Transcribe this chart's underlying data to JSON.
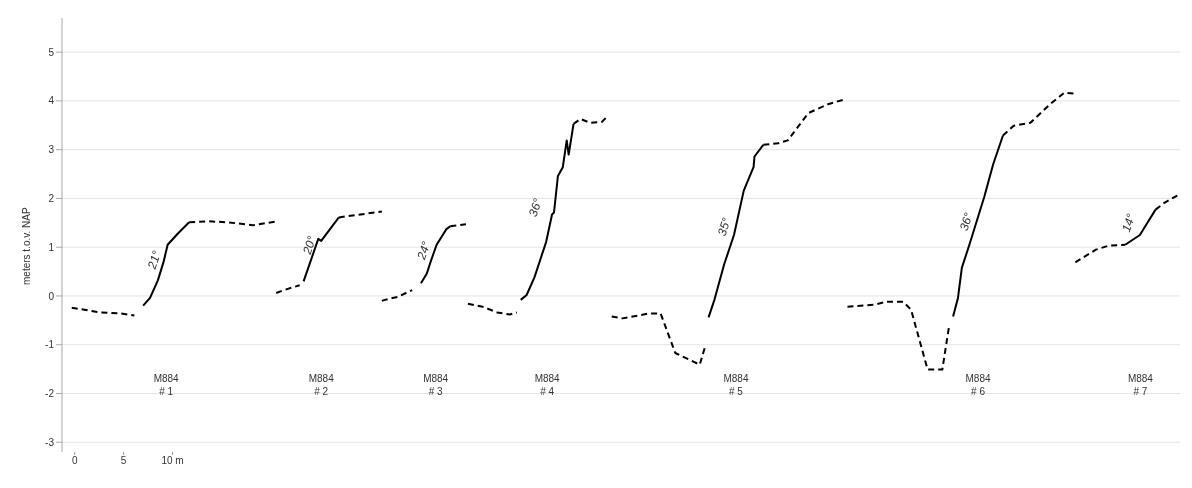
{
  "chart_data": {
    "type": "line",
    "ylabel": "meters t.o.v. NAP",
    "xlim": [
      -1.3,
      113
    ],
    "xticks": [
      0,
      5,
      {
        "value": 10,
        "label": "10 m"
      }
    ],
    "ylim": [
      -3.2,
      5.7
    ],
    "yticks": [
      -3,
      -2,
      -1,
      0,
      1,
      2,
      3,
      4,
      5
    ],
    "grid": "y",
    "marker": "none",
    "series": [
      {
        "color": "#000000",
        "line_style": "dashed",
        "x": [
          -0.3,
          2.7,
          4.7,
          6.1
        ],
        "values": [
          -0.24,
          -0.34,
          -0.36,
          -0.4
        ]
      },
      {
        "color": "#000000",
        "line_style": "solid",
        "x": [
          7.0,
          7.7,
          8.5,
          9.1,
          9.5,
          10.5,
          11.7
        ],
        "values": [
          -0.2,
          -0.04,
          0.32,
          0.71,
          1.05,
          1.27,
          1.51
        ]
      },
      {
        "color": "#000000",
        "line_style": "dashed",
        "x": [
          11.7,
          13.7,
          15.7,
          18.2,
          20.7
        ],
        "values": [
          1.51,
          1.53,
          1.51,
          1.45,
          1.53
        ]
      },
      {
        "color": "#000000",
        "line_style": "dashed",
        "x": [
          20.6,
          21.4,
          23.0
        ],
        "values": [
          0.06,
          0.12,
          0.22
        ]
      },
      {
        "color": "#000000",
        "line_style": "solid",
        "x": [
          23.4,
          24.9,
          25.2,
          27.0
        ],
        "values": [
          0.3,
          1.17,
          1.13,
          1.61
        ]
      },
      {
        "color": "#000000",
        "line_style": "dashed",
        "x": [
          27.0,
          28.4,
          31.4
        ],
        "values": [
          1.61,
          1.65,
          1.73
        ]
      },
      {
        "color": "#000000",
        "line_style": "dashed",
        "x": [
          31.4,
          31.7,
          33.0,
          34.5
        ],
        "values": [
          -0.1,
          -0.08,
          -0.02,
          0.12
        ]
      },
      {
        "color": "#000000",
        "line_style": "solid",
        "x": [
          35.4,
          36.0,
          36.4,
          37.0,
          38.0,
          38.4
        ],
        "values": [
          0.26,
          0.46,
          0.71,
          1.05,
          1.37,
          1.43
        ]
      },
      {
        "color": "#000000",
        "line_style": "dashed",
        "x": [
          38.4,
          40.0
        ],
        "values": [
          1.43,
          1.47
        ]
      },
      {
        "color": "#000000",
        "line_style": "dashed",
        "x": [
          40.2,
          41.7,
          43.2,
          44.5,
          45.2
        ],
        "values": [
          -0.16,
          -0.22,
          -0.34,
          -0.38,
          -0.34
        ]
      },
      {
        "color": "#000000",
        "line_style": "solid",
        "x": [
          45.6,
          46.2,
          47.0,
          48.2,
          48.8,
          49.0,
          49.4,
          49.9,
          50.3,
          50.5,
          51.0
        ],
        "values": [
          -0.08,
          0.02,
          0.38,
          1.11,
          1.67,
          1.71,
          2.46,
          2.64,
          3.19,
          2.9,
          3.53
        ]
      },
      {
        "color": "#000000",
        "line_style": "dashed",
        "x": [
          51.0,
          51.7,
          52.7,
          53.9,
          54.5
        ],
        "values": [
          3.53,
          3.63,
          3.55,
          3.57,
          3.69
        ]
      },
      {
        "color": "#000000",
        "line_style": "dashed",
        "x": [
          54.9,
          56.0,
          58.7,
          59.9,
          61.4,
          63.9,
          64.4
        ],
        "values": [
          -0.42,
          -0.46,
          -0.36,
          -0.36,
          -1.17,
          -1.41,
          -1.07
        ]
      },
      {
        "color": "#000000",
        "line_style": "solid",
        "x": [
          64.8,
          65.4,
          66.4,
          67.4,
          68.4,
          69.4,
          69.5,
          70.4
        ],
        "values": [
          -0.44,
          -0.08,
          0.65,
          1.25,
          2.16,
          2.64,
          2.86,
          3.1
        ]
      },
      {
        "color": "#000000",
        "line_style": "dashed",
        "x": [
          70.4,
          71.9,
          72.9,
          75.0,
          77.0,
          78.7
        ],
        "values": [
          3.1,
          3.13,
          3.19,
          3.75,
          3.93,
          4.03
        ]
      },
      {
        "color": "#000000",
        "line_style": "dashed",
        "x": [
          79.0,
          81.7,
          83.0,
          84.7,
          85.5,
          87.2,
          88.7,
          89.4
        ],
        "values": [
          -0.22,
          -0.18,
          -0.12,
          -0.12,
          -0.28,
          -1.51,
          -1.51,
          -0.61
        ]
      },
      {
        "color": "#000000",
        "line_style": "solid",
        "x": [
          89.8,
          90.3,
          90.7,
          91.5,
          93.0,
          93.9,
          94.9
        ],
        "values": [
          -0.42,
          -0.04,
          0.58,
          1.07,
          2.04,
          2.7,
          3.29
        ]
      },
      {
        "color": "#000000",
        "line_style": "dashed",
        "x": [
          94.9,
          96.0,
          97.7,
          99.7,
          101.2,
          102.2
        ],
        "values": [
          3.29,
          3.49,
          3.55,
          3.93,
          4.17,
          4.15
        ]
      },
      {
        "color": "#000000",
        "line_style": "dashed",
        "x": [
          102.3,
          104.4,
          105.7,
          107.4
        ],
        "values": [
          0.69,
          0.95,
          1.03,
          1.05
        ]
      },
      {
        "color": "#000000",
        "line_style": "solid",
        "x": [
          107.4,
          108.9,
          109.7,
          110.5
        ],
        "values": [
          1.05,
          1.25,
          1.51,
          1.77
        ]
      },
      {
        "color": "#000000",
        "line_style": "dashed",
        "x": [
          110.5,
          111.4,
          112.9
        ],
        "values": [
          1.77,
          1.91,
          2.08
        ]
      }
    ],
    "annotations": [
      "21°",
      "20°",
      "24°",
      "36°",
      "35°",
      "36°",
      "14°",
      "M884\n# 1",
      "M884\n# 2",
      "M884\n# 3",
      "M884\n# 4",
      "M884\n# 5",
      "M884\n# 6",
      "M884\n# 7"
    ]
  }
}
